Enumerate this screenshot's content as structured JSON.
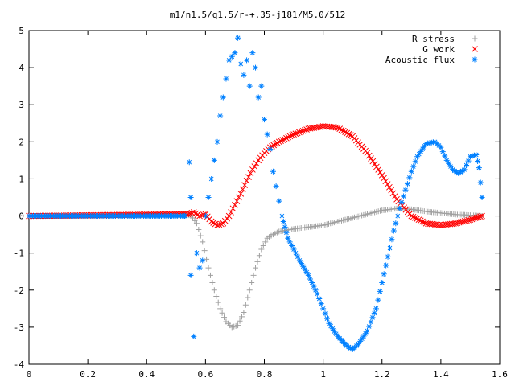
{
  "chart_data": {
    "type": "scatter",
    "title": "m1/n1.5/q1.5/r-+.35-j181/M5.0/512",
    "xlabel": "",
    "ylabel": "",
    "xlim": [
      0,
      1.6
    ],
    "ylim": [
      -4,
      5
    ],
    "x_ticks": [
      "0",
      "0.2",
      "0.4",
      "0.6",
      "0.8",
      "1",
      "1.2",
      "1.4",
      "1.6"
    ],
    "y_ticks": [
      "-4",
      "-3",
      "-2",
      "-1",
      "0",
      "1",
      "2",
      "3",
      "4",
      "5"
    ],
    "legend_position": "top-right",
    "grid": false,
    "series": [
      {
        "name": "R stress",
        "marker": "+",
        "color": "#a0a0a0",
        "points": [
          [
            0.0,
            0
          ],
          [
            0.55,
            0.02
          ],
          [
            0.57,
            -0.2
          ],
          [
            0.59,
            -0.7
          ],
          [
            0.61,
            -1.4
          ],
          [
            0.63,
            -2.0
          ],
          [
            0.65,
            -2.5
          ],
          [
            0.67,
            -2.85
          ],
          [
            0.69,
            -3.0
          ],
          [
            0.71,
            -2.95
          ],
          [
            0.73,
            -2.6
          ],
          [
            0.75,
            -2.0
          ],
          [
            0.77,
            -1.4
          ],
          [
            0.79,
            -0.9
          ],
          [
            0.81,
            -0.6
          ],
          [
            0.83,
            -0.5
          ],
          [
            0.85,
            -0.42
          ],
          [
            0.9,
            -0.35
          ],
          [
            0.95,
            -0.3
          ],
          [
            1.0,
            -0.25
          ],
          [
            1.05,
            -0.15
          ],
          [
            1.1,
            -0.05
          ],
          [
            1.15,
            0.05
          ],
          [
            1.2,
            0.15
          ],
          [
            1.25,
            0.2
          ],
          [
            1.3,
            0.18
          ],
          [
            1.35,
            0.12
          ],
          [
            1.4,
            0.08
          ],
          [
            1.45,
            0.04
          ],
          [
            1.5,
            0.02
          ],
          [
            1.54,
            0.0
          ]
        ]
      },
      {
        "name": "G work",
        "marker": "x",
        "color": "#ff0000",
        "points": [
          [
            0.0,
            0
          ],
          [
            0.54,
            0.05
          ],
          [
            0.56,
            0.1
          ],
          [
            0.58,
            0.0
          ],
          [
            0.6,
            0.05
          ],
          [
            0.62,
            -0.15
          ],
          [
            0.64,
            -0.25
          ],
          [
            0.66,
            -0.2
          ],
          [
            0.68,
            0.0
          ],
          [
            0.7,
            0.3
          ],
          [
            0.72,
            0.6
          ],
          [
            0.74,
            0.95
          ],
          [
            0.76,
            1.25
          ],
          [
            0.78,
            1.5
          ],
          [
            0.8,
            1.7
          ],
          [
            0.82,
            1.85
          ],
          [
            0.85,
            2.0
          ],
          [
            0.9,
            2.2
          ],
          [
            0.95,
            2.35
          ],
          [
            1.0,
            2.42
          ],
          [
            1.05,
            2.38
          ],
          [
            1.1,
            2.15
          ],
          [
            1.15,
            1.7
          ],
          [
            1.2,
            1.1
          ],
          [
            1.25,
            0.45
          ],
          [
            1.3,
            0.0
          ],
          [
            1.35,
            -0.2
          ],
          [
            1.4,
            -0.25
          ],
          [
            1.45,
            -0.2
          ],
          [
            1.5,
            -0.1
          ],
          [
            1.54,
            0.0
          ]
        ]
      },
      {
        "name": "Acoustic flux",
        "marker": "*",
        "color": "#0080ff",
        "points": [
          [
            0.0,
            0
          ],
          [
            0.53,
            0
          ],
          [
            0.545,
            1.45
          ],
          [
            0.55,
            0.5
          ],
          [
            0.55,
            -1.6
          ],
          [
            0.56,
            -3.25
          ],
          [
            0.57,
            -1.0
          ],
          [
            0.58,
            -1.4
          ],
          [
            0.59,
            -1.2
          ],
          [
            0.6,
            0.0
          ],
          [
            0.61,
            0.5
          ],
          [
            0.62,
            1.0
          ],
          [
            0.63,
            1.5
          ],
          [
            0.64,
            2.0
          ],
          [
            0.65,
            2.7
          ],
          [
            0.66,
            3.2
          ],
          [
            0.67,
            3.7
          ],
          [
            0.68,
            4.2
          ],
          [
            0.69,
            4.3
          ],
          [
            0.7,
            4.4
          ],
          [
            0.71,
            4.8
          ],
          [
            0.72,
            4.1
          ],
          [
            0.73,
            3.8
          ],
          [
            0.74,
            4.2
          ],
          [
            0.75,
            3.5
          ],
          [
            0.76,
            4.4
          ],
          [
            0.77,
            4.0
          ],
          [
            0.78,
            3.2
          ],
          [
            0.79,
            3.5
          ],
          [
            0.8,
            2.6
          ],
          [
            0.81,
            2.2
          ],
          [
            0.82,
            1.8
          ],
          [
            0.83,
            1.2
          ],
          [
            0.84,
            0.8
          ],
          [
            0.85,
            0.4
          ],
          [
            0.86,
            0.0
          ],
          [
            0.87,
            -0.3
          ],
          [
            0.88,
            -0.6
          ],
          [
            0.9,
            -0.9
          ],
          [
            0.92,
            -1.2
          ],
          [
            0.95,
            -1.6
          ],
          [
            0.98,
            -2.1
          ],
          [
            1.0,
            -2.5
          ],
          [
            1.02,
            -2.9
          ],
          [
            1.05,
            -3.25
          ],
          [
            1.08,
            -3.5
          ],
          [
            1.1,
            -3.6
          ],
          [
            1.12,
            -3.45
          ],
          [
            1.15,
            -3.1
          ],
          [
            1.18,
            -2.5
          ],
          [
            1.2,
            -1.8
          ],
          [
            1.22,
            -1.1
          ],
          [
            1.24,
            -0.4
          ],
          [
            1.26,
            0.2
          ],
          [
            1.28,
            0.7
          ],
          [
            1.3,
            1.2
          ],
          [
            1.32,
            1.6
          ],
          [
            1.35,
            1.95
          ],
          [
            1.38,
            2.0
          ],
          [
            1.4,
            1.85
          ],
          [
            1.42,
            1.5
          ],
          [
            1.44,
            1.25
          ],
          [
            1.46,
            1.15
          ],
          [
            1.48,
            1.25
          ],
          [
            1.5,
            1.6
          ],
          [
            1.52,
            1.65
          ],
          [
            1.53,
            1.3
          ],
          [
            1.54,
            0.5
          ]
        ]
      }
    ]
  }
}
